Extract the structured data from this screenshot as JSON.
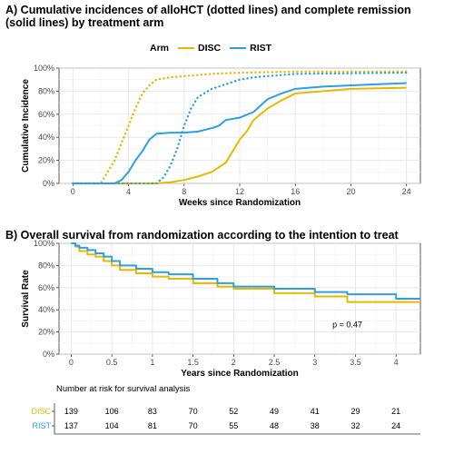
{
  "figure": {
    "panel_a_title": "A) Cumulative incidences of alloHCT (dotted lines) and complete remission (solid lines) by treatment arm",
    "panel_b_title": "B) Overall survival from randomization according to the intention to treat"
  },
  "colors": {
    "DISC": "#E7B800",
    "RIST": "#2E9FDF"
  },
  "chart_data": [
    {
      "type": "line",
      "legend_title": "Arm",
      "legend_position": "top",
      "xlabel": "Weeks since Randomization",
      "ylabel": "Cumulative Incidence",
      "xlim": [
        -1,
        25
      ],
      "ylim": [
        0,
        1
      ],
      "xticks": [
        0,
        4,
        8,
        12,
        16,
        20,
        24
      ],
      "yticks": [
        0,
        0.2,
        0.4,
        0.6,
        0.8,
        1.0
      ],
      "ytick_labels": [
        "0%",
        "20%",
        "40%",
        "60%",
        "80%",
        "100%"
      ],
      "grid": true,
      "series": [
        {
          "name": "DISC",
          "style": "dotted",
          "outcome": "alloHCT",
          "x": [
            0,
            2,
            2.5,
            3,
            3.5,
            4,
            4.5,
            5,
            5.5,
            6,
            7,
            8,
            10,
            12,
            16,
            24
          ],
          "y": [
            0,
            0,
            0.1,
            0.2,
            0.35,
            0.5,
            0.65,
            0.78,
            0.85,
            0.9,
            0.92,
            0.93,
            0.95,
            0.96,
            0.97,
            0.97
          ]
        },
        {
          "name": "DISC",
          "style": "solid",
          "outcome": "complete remission",
          "x": [
            0,
            6,
            7,
            8,
            9,
            10,
            11,
            11.5,
            12,
            12.5,
            13,
            14,
            15,
            16,
            18,
            20,
            24
          ],
          "y": [
            0,
            0,
            0.01,
            0.03,
            0.06,
            0.1,
            0.18,
            0.28,
            0.38,
            0.45,
            0.55,
            0.65,
            0.72,
            0.78,
            0.8,
            0.82,
            0.83
          ]
        },
        {
          "name": "RIST",
          "style": "dotted",
          "outcome": "alloHCT",
          "x": [
            0,
            6,
            6.5,
            7,
            7.5,
            8,
            8.5,
            9,
            10,
            11,
            12,
            13,
            16,
            24
          ],
          "y": [
            0,
            0,
            0.05,
            0.15,
            0.3,
            0.5,
            0.65,
            0.75,
            0.82,
            0.86,
            0.9,
            0.92,
            0.95,
            0.96
          ]
        },
        {
          "name": "RIST",
          "style": "solid",
          "outcome": "complete remission",
          "x": [
            0,
            3,
            3.5,
            4,
            4.5,
            5,
            5.5,
            6,
            7,
            8,
            9,
            10,
            10.5,
            11,
            12,
            13,
            14,
            15,
            16,
            18,
            20,
            24
          ],
          "y": [
            0,
            0,
            0.03,
            0.1,
            0.2,
            0.28,
            0.38,
            0.43,
            0.44,
            0.44,
            0.45,
            0.48,
            0.5,
            0.55,
            0.57,
            0.62,
            0.73,
            0.78,
            0.82,
            0.84,
            0.85,
            0.87
          ]
        }
      ]
    },
    {
      "type": "line",
      "step": true,
      "xlabel": "Years since Randomization",
      "ylabel": "Survival Rate",
      "xlim": [
        -0.15,
        4.3
      ],
      "ylim": [
        0,
        1
      ],
      "xticks": [
        0,
        0.5,
        1,
        1.5,
        2,
        2.5,
        3,
        3.5,
        4
      ],
      "xtick_labels": [
        "0",
        "0.5",
        "1",
        "1.5",
        "2",
        "2.5",
        "3",
        "3.5",
        "4"
      ],
      "yticks": [
        0,
        0.2,
        0.4,
        0.6,
        0.8,
        1.0
      ],
      "ytick_labels": [
        "0%",
        "20%",
        "40%",
        "60%",
        "80%",
        "100%"
      ],
      "grid": true,
      "annotation": "p = 0.47",
      "annotation_x": 3.4,
      "annotation_y": 0.24,
      "series": [
        {
          "name": "DISC",
          "x": [
            0,
            0.05,
            0.1,
            0.2,
            0.3,
            0.4,
            0.5,
            0.6,
            0.8,
            1.0,
            1.2,
            1.5,
            1.8,
            2.0,
            2.5,
            3.0,
            3.4,
            3.5,
            4.0,
            4.3
          ],
          "y": [
            1.0,
            0.97,
            0.93,
            0.9,
            0.88,
            0.84,
            0.8,
            0.76,
            0.73,
            0.7,
            0.68,
            0.64,
            0.61,
            0.59,
            0.55,
            0.52,
            0.47,
            0.47,
            0.47,
            0.47
          ]
        },
        {
          "name": "RIST",
          "x": [
            0,
            0.05,
            0.1,
            0.2,
            0.3,
            0.4,
            0.5,
            0.6,
            0.8,
            1.0,
            1.2,
            1.5,
            1.8,
            2.0,
            2.5,
            3.0,
            3.4,
            3.5,
            3.8,
            4.0,
            4.3
          ],
          "y": [
            1.0,
            0.98,
            0.96,
            0.94,
            0.91,
            0.88,
            0.84,
            0.8,
            0.77,
            0.74,
            0.72,
            0.68,
            0.64,
            0.61,
            0.59,
            0.56,
            0.54,
            0.54,
            0.54,
            0.5,
            0.5
          ]
        }
      ]
    }
  ],
  "risk_table": {
    "title": "Number at risk for survival analysis",
    "times": [
      0,
      0.5,
      1,
      1.5,
      2,
      2.5,
      3,
      3.5,
      4
    ],
    "rows": [
      {
        "arm": "DISC",
        "values": [
          "139",
          "106",
          "83",
          "70",
          "52",
          "49",
          "41",
          "29",
          "21"
        ]
      },
      {
        "arm": "RIST",
        "values": [
          "137",
          "104",
          "81",
          "70",
          "55",
          "48",
          "38",
          "32",
          "24"
        ]
      }
    ]
  }
}
